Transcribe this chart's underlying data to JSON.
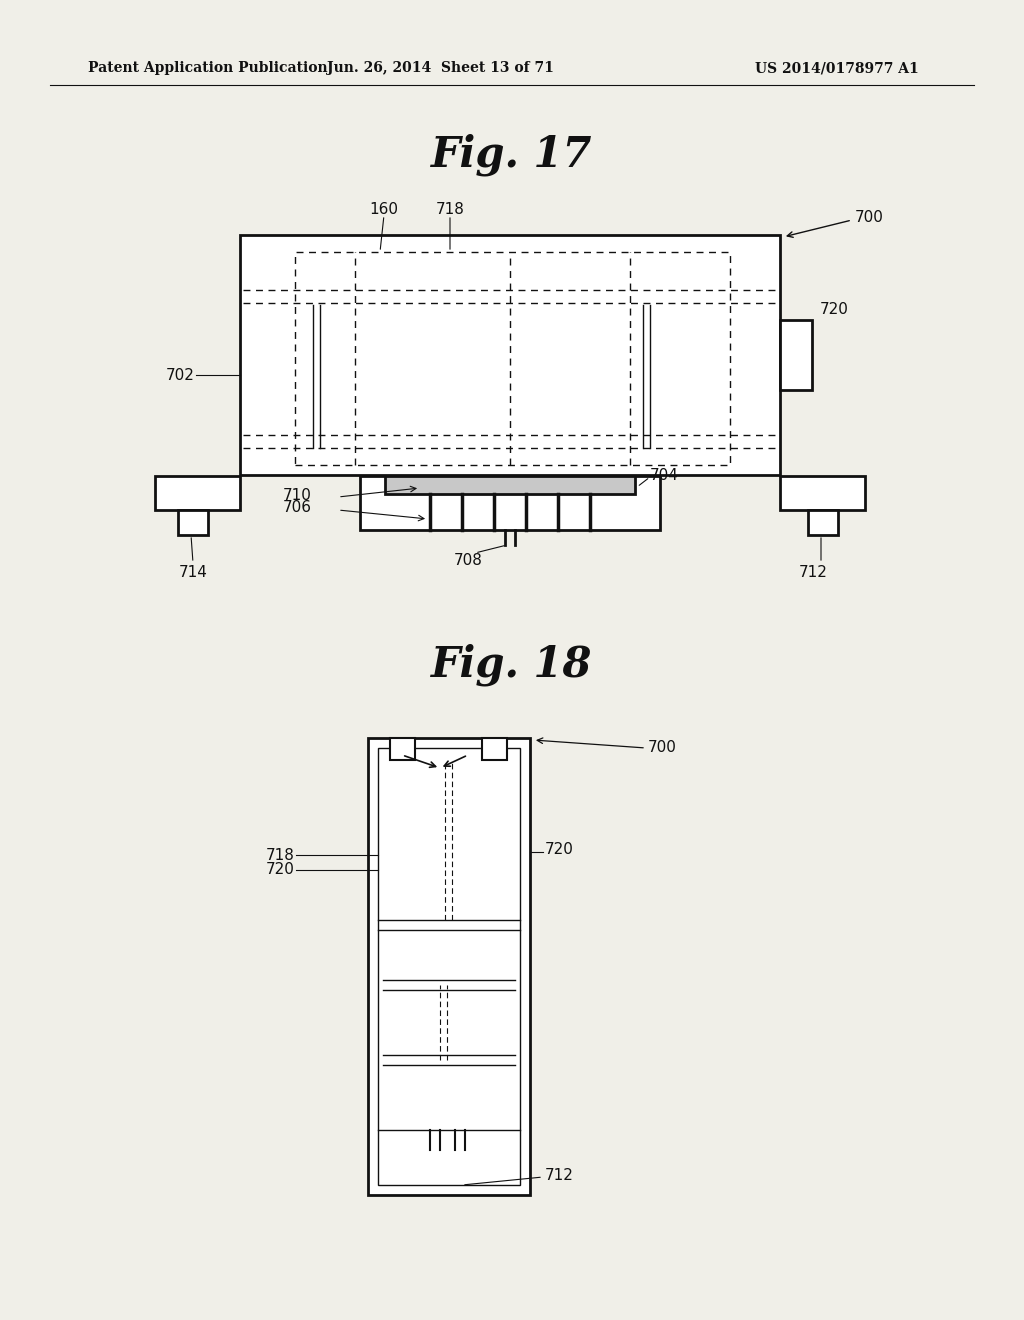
{
  "bg_color": "#f0efe8",
  "header_text1": "Patent Application Publication",
  "header_text2": "Jun. 26, 2014  Sheet 13 of 71",
  "header_text3": "US 2014/0178977 A1",
  "fig17_title": "Fig. 17",
  "fig18_title": "Fig. 18"
}
